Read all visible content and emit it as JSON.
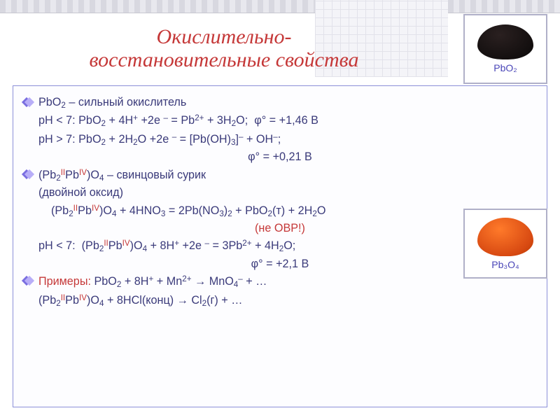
{
  "title_line1": "Окислительно-",
  "title_line2": "восстановительные свойства",
  "sample_top_label": "PbO₂",
  "sample_mid_label": "Pb₃O₄",
  "colors": {
    "title": "#c53838",
    "body_text": "#3a3a7a",
    "red_text": "#c53838",
    "box_border": "#8c90d8",
    "sample_border": "#b0b0c8",
    "dark_powder": "#0a0808",
    "orange_powder": "#d84a12",
    "background": "#ffffff"
  },
  "typography": {
    "title_family": "Georgia serif italic",
    "title_size_pt": 22,
    "body_family": "Verdana",
    "body_size_pt": 12
  },
  "lines": {
    "l1": "PbO₂ – сильный окислитель",
    "l2": "pH < 7: PbO₂ + 4H⁺ +2e ⁻ = Pb²⁺ + 3H₂O;  φ° = +1,46 В",
    "l3": "pH > 7: PbO₂ + 2H₂O +2e ⁻ = [Pb(OH)₃]⁻ + OH⁻;",
    "l4": "φ° = +0,21 В",
    "l5_a": "(Pb₂",
    "l5_roman1": "II",
    "l5_b": "Pb",
    "l5_roman2": "IV",
    "l5_c": ")O₄ – свинцовый сурик",
    "l6": "(двойной оксид)",
    "l7_a": "(Pb₂",
    "l7_b": "Pb",
    "l7_c": ")O₄ + 4HNO₃ = 2Pb(NO₃)₂ + PbO₂(т) + 2H₂O",
    "l8": "(не ОВР!)",
    "l9_a": "pH < 7:  (Pb₂",
    "l9_b": "Pb",
    "l9_c": ")O₄ + 8H⁺ +2e ⁻ = 3Pb²⁺ + 4H₂O;",
    "l10": "φ° = +2,1 В",
    "l11_label": "Примеры:",
    "l11_rest": " PbO₂ + 8H⁺ + Mn²⁺ → MnO₄⁻ + …",
    "l12_a": "(Pb₂",
    "l12_b": "Pb",
    "l12_c": ")O₄ + 8HCl(конц) → Cl₂(г) + …"
  }
}
